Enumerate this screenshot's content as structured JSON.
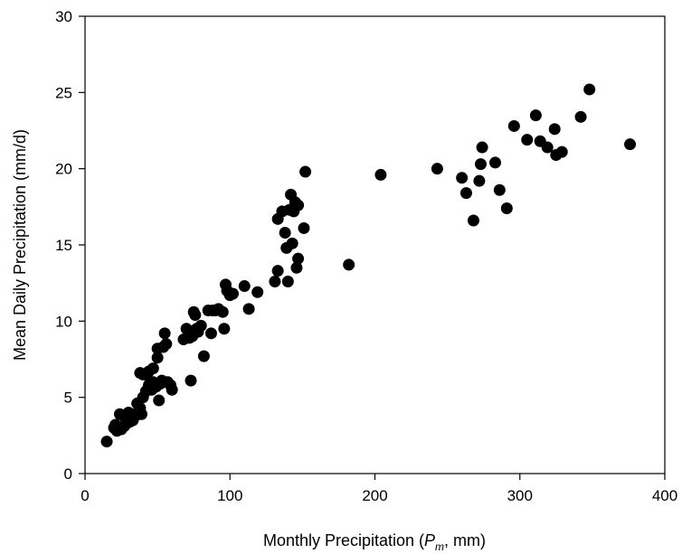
{
  "chart_data": {
    "type": "scatter",
    "title": "",
    "xlabel": {
      "before": "Monthly Precipitation (",
      "symbol": "P",
      "subscript": "m",
      "after": ", mm)"
    },
    "ylabel": "Mean Daily Precipitation (mm/d)",
    "xlim": [
      0,
      400
    ],
    "ylim": [
      0,
      30
    ],
    "xticks": [
      0,
      100,
      200,
      300,
      400
    ],
    "yticks": [
      0,
      5,
      10,
      15,
      20,
      25,
      30
    ],
    "grid": false,
    "legend": "none",
    "marker_color": "#000000",
    "series": [
      {
        "points": [
          [
            15,
            2.1
          ],
          [
            20,
            3.0
          ],
          [
            21,
            3.2
          ],
          [
            22,
            2.8
          ],
          [
            24,
            3.9
          ],
          [
            25,
            2.9
          ],
          [
            27,
            3.1
          ],
          [
            28,
            3.6
          ],
          [
            29,
            3.3
          ],
          [
            30,
            4.0
          ],
          [
            31,
            3.4
          ],
          [
            33,
            3.5
          ],
          [
            35,
            3.8
          ],
          [
            36,
            4.6
          ],
          [
            37,
            4.1
          ],
          [
            38,
            4.3
          ],
          [
            38,
            6.6
          ],
          [
            39,
            3.9
          ],
          [
            40,
            5.0
          ],
          [
            40,
            6.5
          ],
          [
            42,
            5.4
          ],
          [
            43,
            5.5
          ],
          [
            44,
            5.8
          ],
          [
            44,
            6.7
          ],
          [
            45,
            6.0
          ],
          [
            46,
            5.5
          ],
          [
            47,
            6.0
          ],
          [
            47,
            6.9
          ],
          [
            48,
            5.8
          ],
          [
            49,
            5.7
          ],
          [
            50,
            7.6
          ],
          [
            50,
            8.2
          ],
          [
            51,
            4.8
          ],
          [
            52,
            5.9
          ],
          [
            53,
            6.1
          ],
          [
            54,
            8.3
          ],
          [
            55,
            9.2
          ],
          [
            56,
            8.5
          ],
          [
            57,
            6.0
          ],
          [
            59,
            5.8
          ],
          [
            60,
            5.5
          ],
          [
            68,
            8.8
          ],
          [
            70,
            9.5
          ],
          [
            72,
            8.9
          ],
          [
            73,
            6.1
          ],
          [
            74,
            9.0
          ],
          [
            75,
            10.6
          ],
          [
            76,
            10.4
          ],
          [
            77,
            9.5
          ],
          [
            78,
            9.3
          ],
          [
            80,
            9.7
          ],
          [
            82,
            7.7
          ],
          [
            85,
            10.7
          ],
          [
            87,
            9.2
          ],
          [
            88,
            10.7
          ],
          [
            90,
            10.7
          ],
          [
            92,
            10.8
          ],
          [
            95,
            10.6
          ],
          [
            96,
            9.5
          ],
          [
            97,
            12.4
          ],
          [
            98,
            12.0
          ],
          [
            100,
            11.7
          ],
          [
            102,
            11.8
          ],
          [
            110,
            12.3
          ],
          [
            113,
            10.8
          ],
          [
            119,
            11.9
          ],
          [
            131,
            12.6
          ],
          [
            133,
            16.7
          ],
          [
            133,
            13.3
          ],
          [
            136,
            17.2
          ],
          [
            138,
            15.8
          ],
          [
            139,
            14.8
          ],
          [
            140,
            12.6
          ],
          [
            141,
            17.3
          ],
          [
            142,
            18.3
          ],
          [
            143,
            15.1
          ],
          [
            144,
            17.2
          ],
          [
            145,
            17.8
          ],
          [
            146,
            13.5
          ],
          [
            147,
            14.1
          ],
          [
            147,
            17.6
          ],
          [
            151,
            16.1
          ],
          [
            152,
            19.8
          ],
          [
            182,
            13.7
          ],
          [
            204,
            19.6
          ],
          [
            243,
            20.0
          ],
          [
            260,
            19.4
          ],
          [
            263,
            18.4
          ],
          [
            268,
            16.6
          ],
          [
            272,
            19.2
          ],
          [
            273,
            20.3
          ],
          [
            274,
            21.4
          ],
          [
            283,
            20.4
          ],
          [
            286,
            18.6
          ],
          [
            291,
            17.4
          ],
          [
            296,
            22.8
          ],
          [
            305,
            21.9
          ],
          [
            311,
            23.5
          ],
          [
            314,
            21.8
          ],
          [
            319,
            21.4
          ],
          [
            324,
            22.6
          ],
          [
            325,
            20.9
          ],
          [
            329,
            21.1
          ],
          [
            342,
            23.4
          ],
          [
            348,
            25.2
          ],
          [
            376,
            21.6
          ]
        ]
      }
    ]
  }
}
